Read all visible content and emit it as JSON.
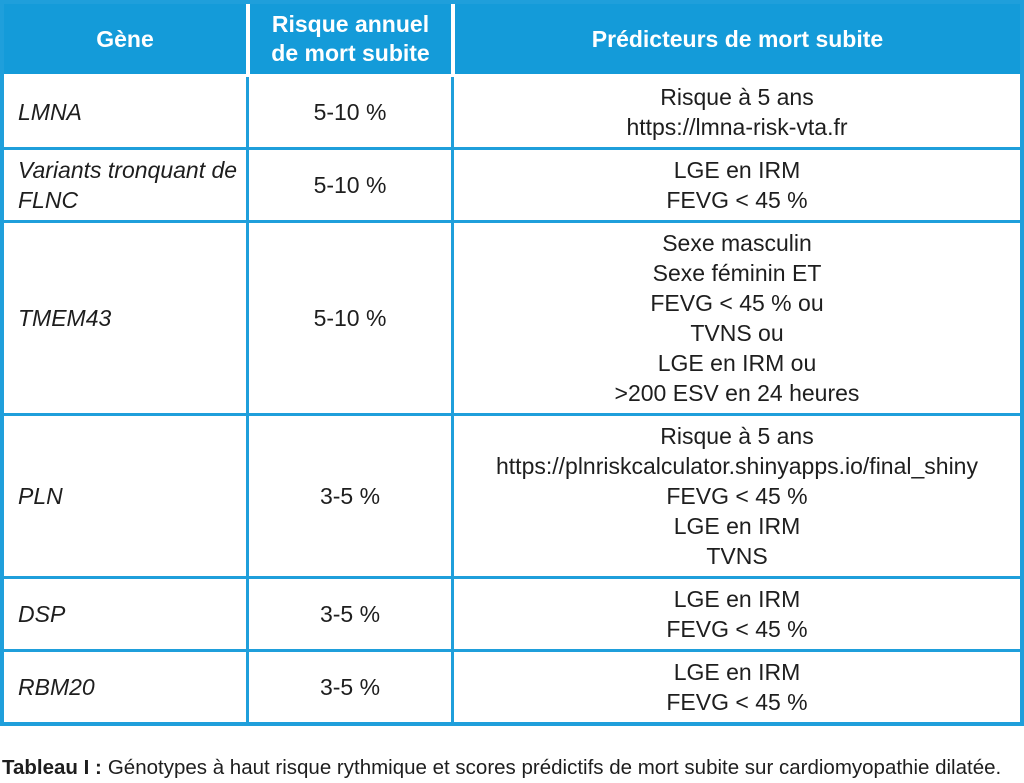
{
  "colors": {
    "header_bg": "#149bd9",
    "grid_border": "#1f9fdb",
    "header_text": "#ffffff",
    "body_text": "#1e1e1e"
  },
  "table": {
    "columns": [
      {
        "label": "Gène"
      },
      {
        "label": "Risque annuel de mort subite"
      },
      {
        "label": "Prédicteurs de mort subite"
      }
    ],
    "rows": [
      {
        "gene": "LMNA",
        "risk": "5-10 %",
        "predictors": [
          "Risque à 5 ans",
          "https://lmna-risk-vta.fr"
        ]
      },
      {
        "gene": "Variants tronquant de FLNC",
        "risk": "5-10 %",
        "predictors": [
          "LGE en IRM",
          "FEVG < 45 %"
        ]
      },
      {
        "gene": "TMEM43",
        "risk": "5-10 %",
        "predictors": [
          "Sexe masculin",
          "Sexe féminin ET",
          "FEVG < 45 % ou",
          "TVNS ou",
          "LGE en IRM ou",
          ">200 ESV en 24 heures"
        ]
      },
      {
        "gene": "PLN",
        "risk": "3-5 %",
        "predictors": [
          "Risque à 5 ans",
          "https://plnriskcalculator.shinyapps.io/final_shiny",
          "FEVG < 45 %",
          "LGE en IRM",
          "TVNS"
        ]
      },
      {
        "gene": "DSP",
        "risk": "3-5 %",
        "predictors": [
          "LGE en IRM",
          "FEVG < 45 %"
        ]
      },
      {
        "gene": "RBM20",
        "risk": "3-5 %",
        "predictors": [
          "LGE en IRM",
          "FEVG < 45 %"
        ]
      }
    ]
  },
  "caption": {
    "label": "Tableau I :",
    "text": "Génotypes à haut risque rythmique et scores prédictifs de mort subite sur cardiomyopathie dilatée."
  }
}
